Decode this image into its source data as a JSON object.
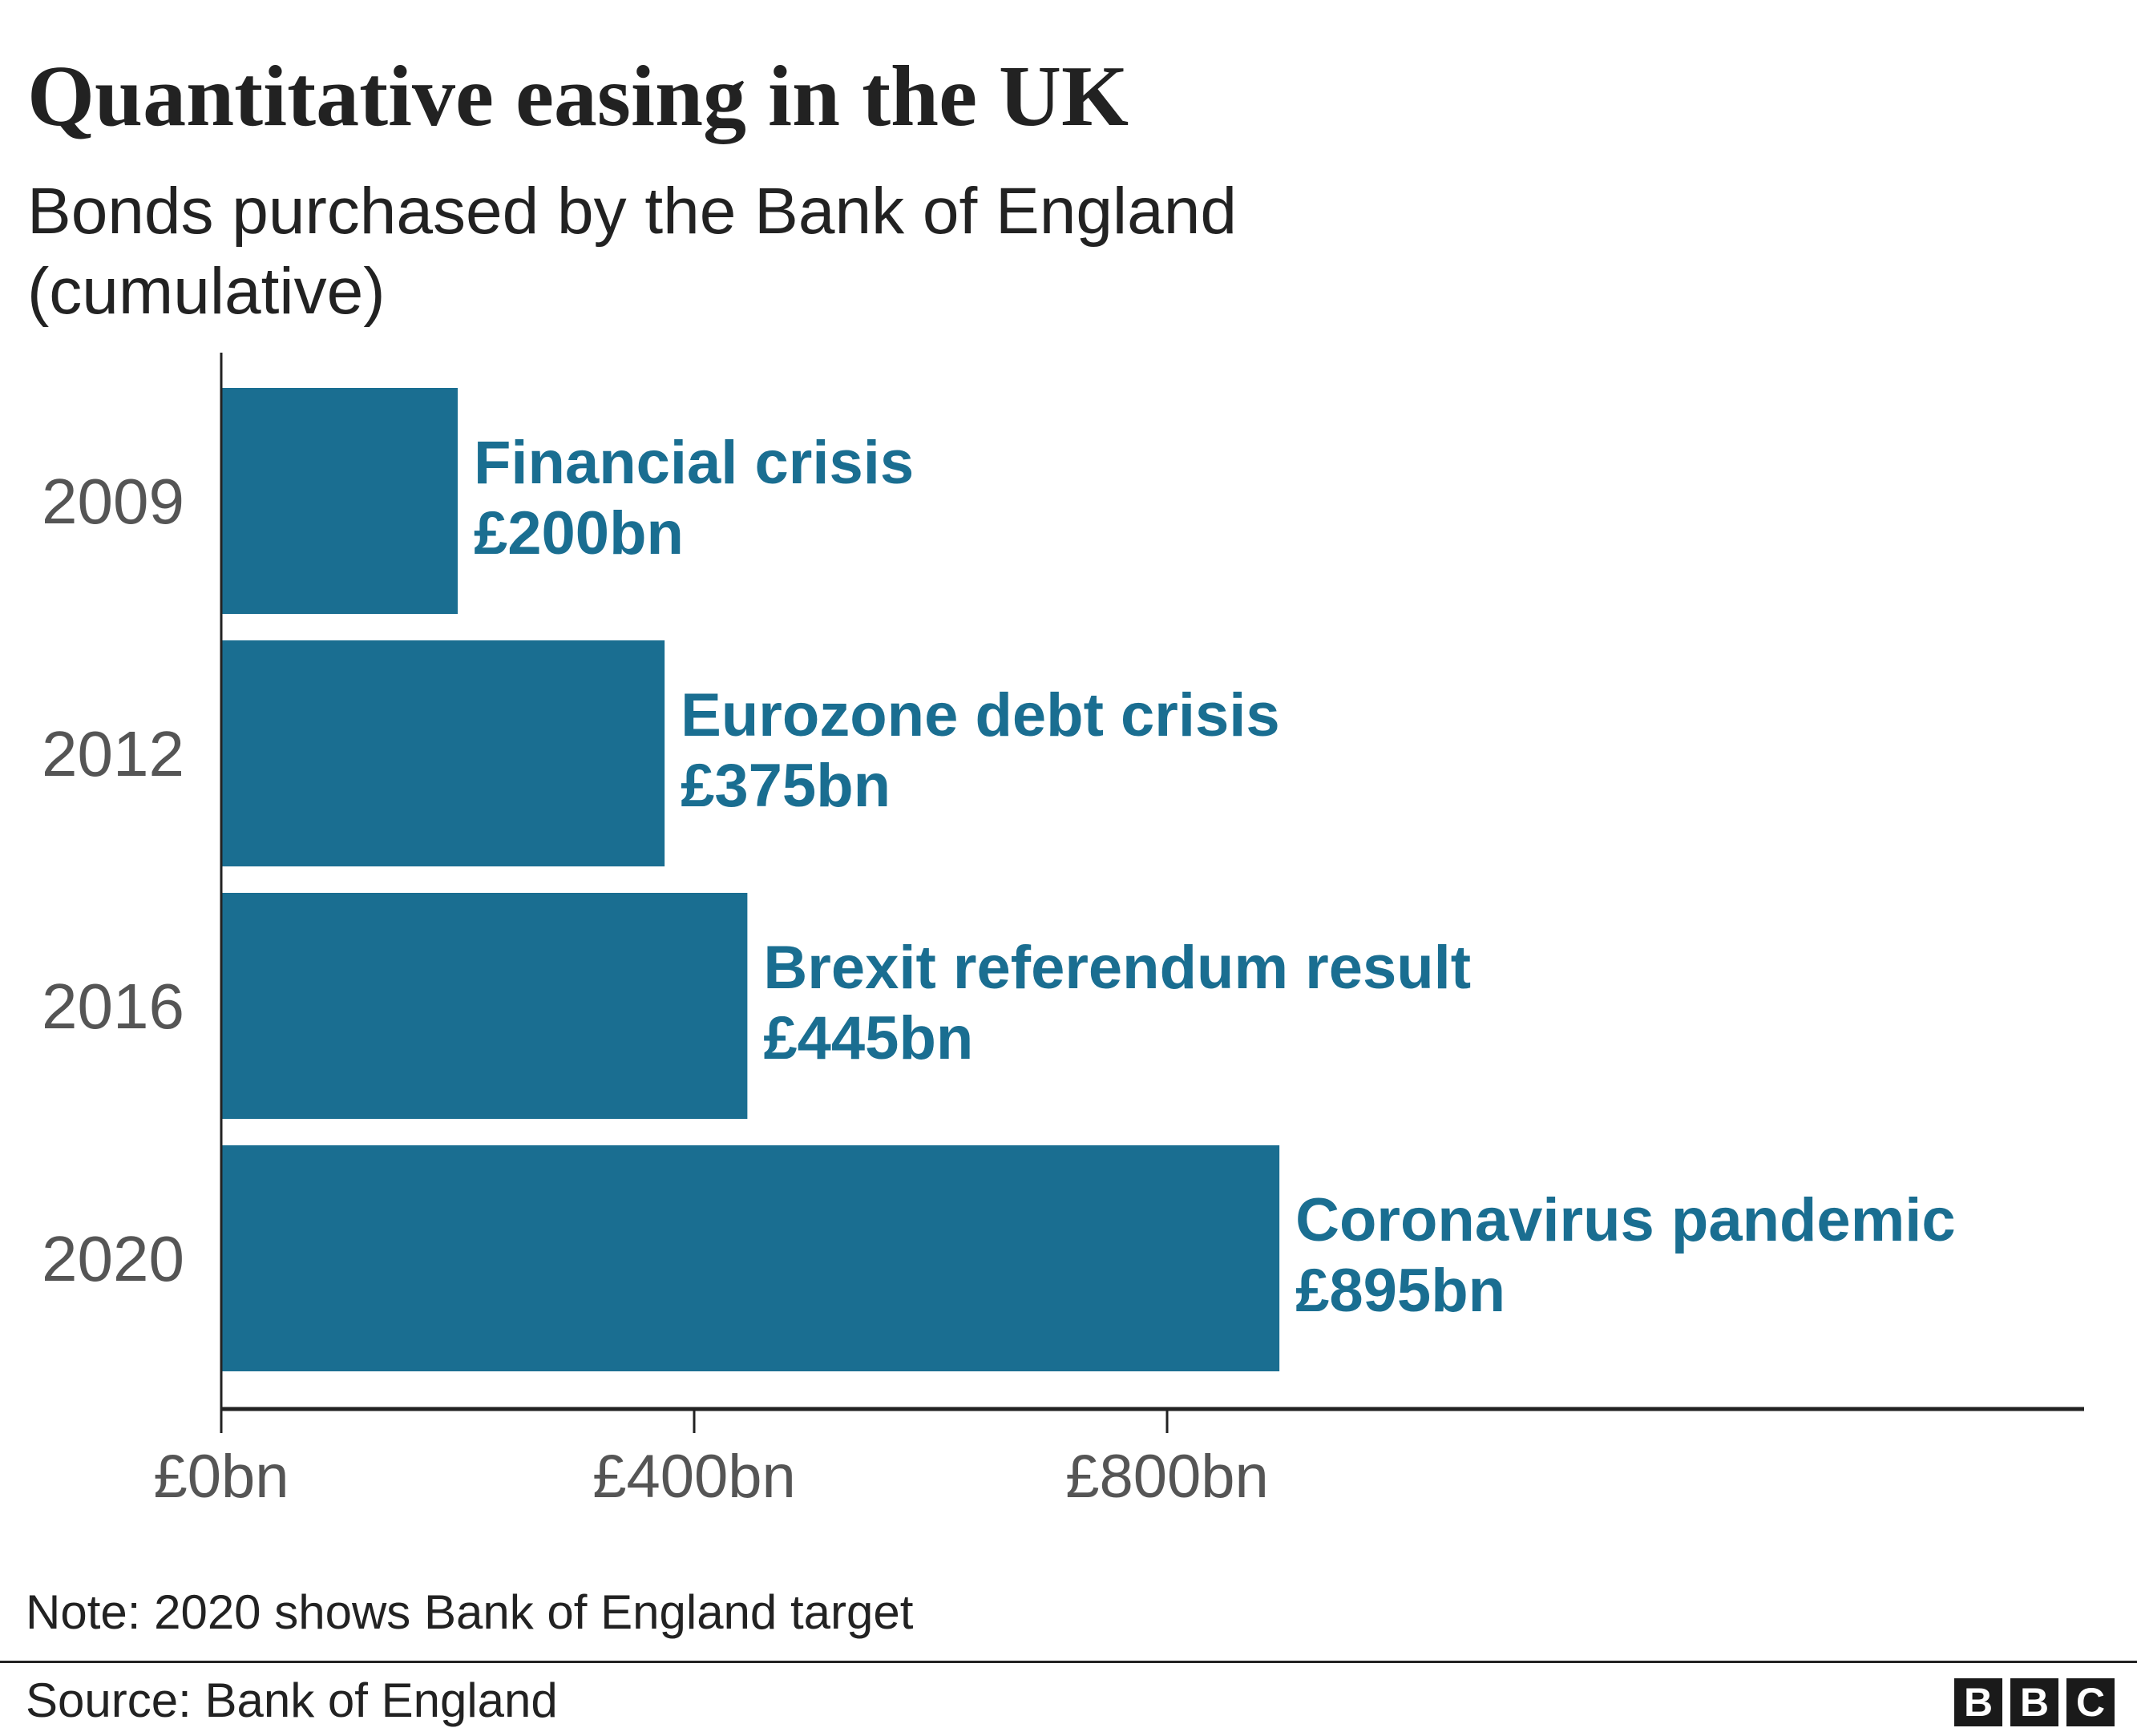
{
  "title": "Quantitative easing in the UK",
  "subtitle": "Bonds purchased by the Bank of England (cumulative)",
  "note": "Note: 2020 shows Bank of England target",
  "source": "Source: Bank of England",
  "logo": [
    "B",
    "B",
    "C"
  ],
  "colors": {
    "bar": "#1a6e91",
    "bar_label": "#1a6e91",
    "axis": "#222222",
    "tick_label": "#555555"
  },
  "chart_data": {
    "type": "bar",
    "orientation": "horizontal",
    "categories": [
      "2009",
      "2012",
      "2016",
      "2020"
    ],
    "values": [
      200,
      375,
      445,
      895
    ],
    "bar_annotations": [
      {
        "event": "Financial crisis",
        "amount": "£200bn"
      },
      {
        "event": "Eurozone debt crisis",
        "amount": "£375bn"
      },
      {
        "event": "Brexit referendum result",
        "amount": "£445bn"
      },
      {
        "event": "Coronavirus pandemic",
        "amount": "£895bn"
      }
    ],
    "x_ticks": [
      0,
      400,
      800
    ],
    "x_tick_labels": [
      "£0bn",
      "£400bn",
      "£800bn"
    ],
    "xlim": [
      0,
      1580
    ],
    "grid": false,
    "title": "Quantitative easing in the UK",
    "xlabel": "",
    "ylabel": ""
  }
}
